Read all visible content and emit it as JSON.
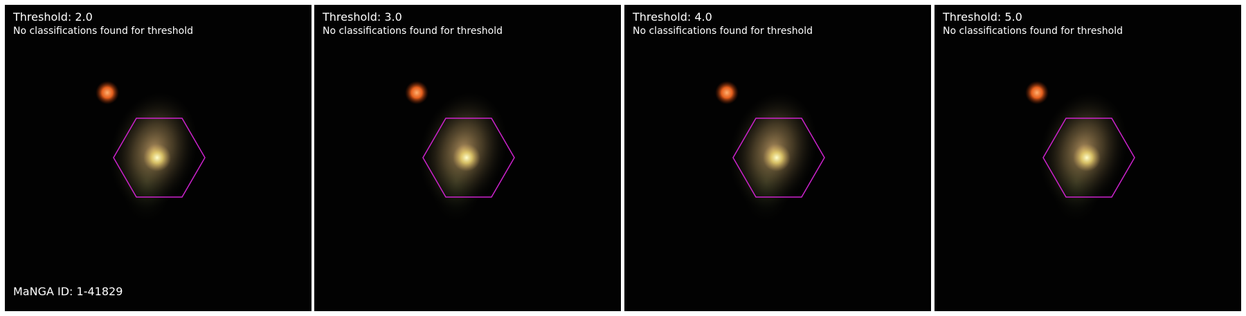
{
  "manga_id": "MaNGA ID: 1-41829",
  "status_text": "No classifications found for threshold",
  "colors": {
    "hexagon": "#cc22cc",
    "background": "#020202",
    "separator": "#ffffff"
  },
  "panels": [
    {
      "threshold": "Threshold: 2.0"
    },
    {
      "threshold": "Threshold: 3.0"
    },
    {
      "threshold": "Threshold: 4.0"
    },
    {
      "threshold": "Threshold: 5.0"
    }
  ]
}
